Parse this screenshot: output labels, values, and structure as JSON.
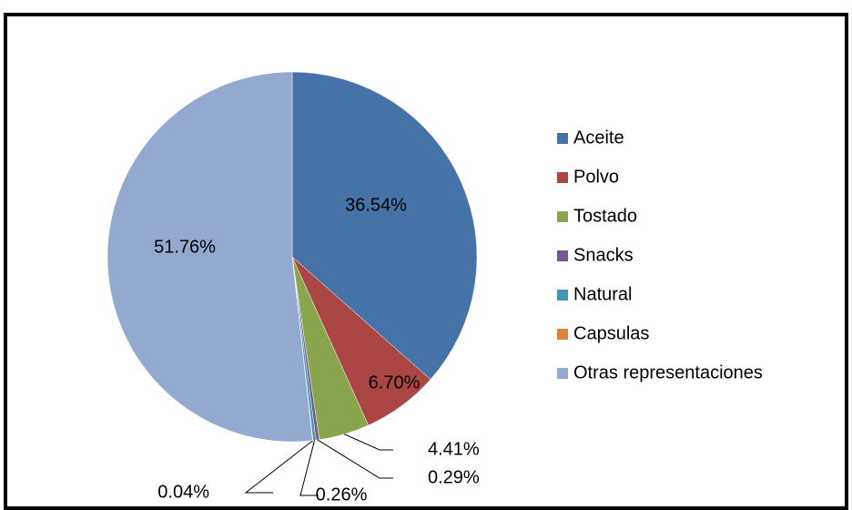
{
  "chart_data": {
    "type": "pie",
    "categories": [
      "Aceite",
      "Polvo",
      "Tostado",
      "Snacks",
      "Natural",
      "Capsulas",
      "Otras representaciones"
    ],
    "values": [
      36.54,
      6.7,
      4.41,
      0.29,
      0.26,
      0.04,
      51.76
    ],
    "value_labels": [
      "36.54%",
      "6.70%",
      "4.41%",
      "0.29%",
      "0.26%",
      "0.04%",
      "51.76%"
    ],
    "colors": [
      "#4572a7",
      "#aa4643",
      "#89a54e",
      "#71588f",
      "#4198af",
      "#db843d",
      "#93a9cf"
    ],
    "legend": "right"
  }
}
